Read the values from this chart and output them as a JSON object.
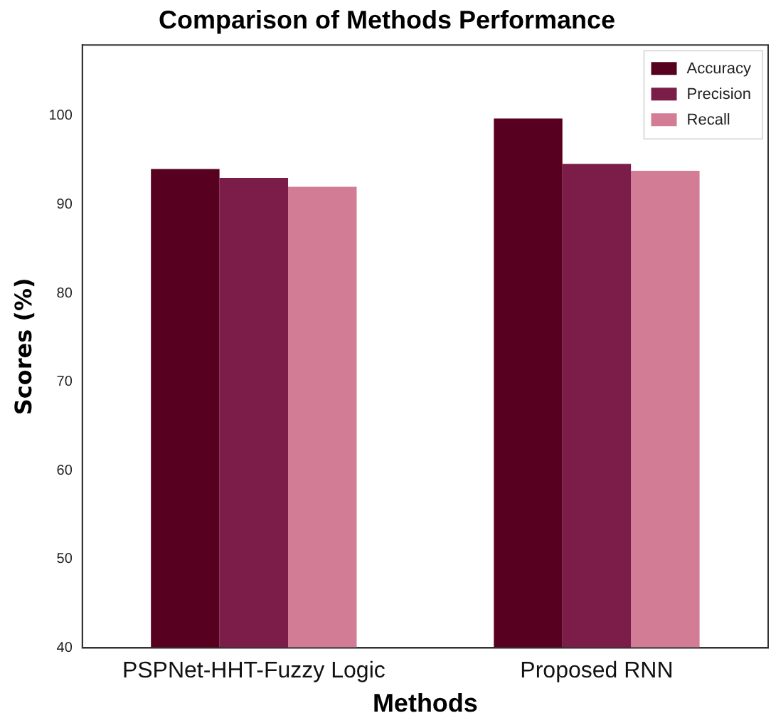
{
  "chart_data": {
    "type": "bar",
    "title": "Comparison of Methods Performance",
    "xlabel": "Methods",
    "ylabel": "Scores (%)",
    "categories": [
      "PSPNet-HHT-Fuzzy Logic",
      "Proposed RNN"
    ],
    "series": [
      {
        "name": "Accuracy",
        "color": "#57001f",
        "values": [
          94.0,
          99.7
        ]
      },
      {
        "name": "Precision",
        "color": "#7b1c49",
        "values": [
          93.0,
          94.6
        ]
      },
      {
        "name": "Recall",
        "color": "#d27c96",
        "values": [
          92.0,
          93.8
        ]
      }
    ],
    "ylim": [
      40,
      108
    ],
    "yticks": [
      40,
      50,
      60,
      70,
      80,
      90,
      100
    ],
    "grid": false,
    "legend": "top right"
  }
}
